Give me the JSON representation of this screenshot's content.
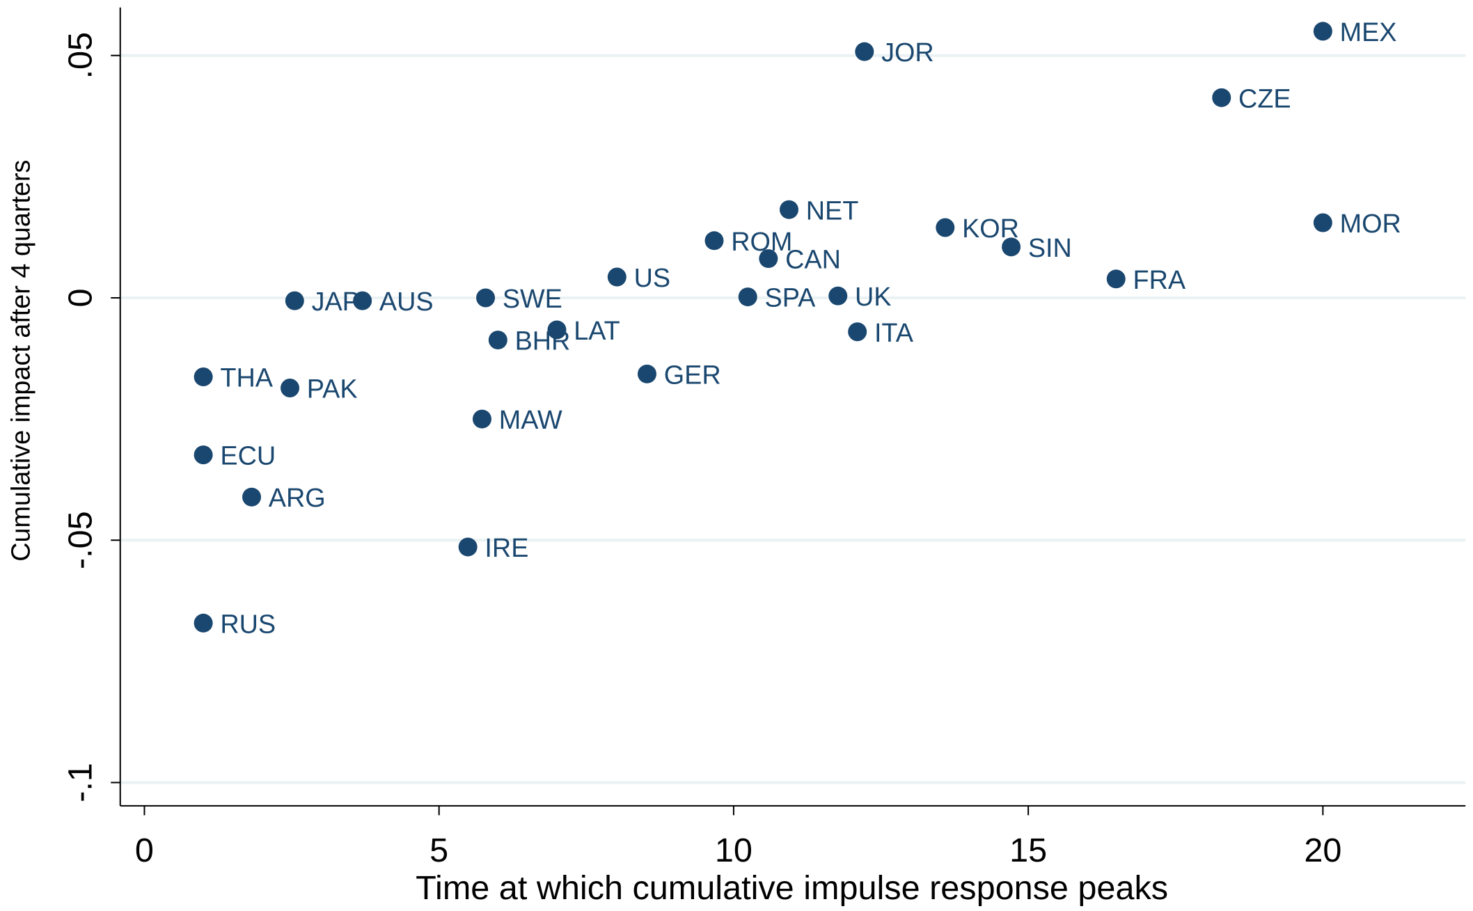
{
  "chart_data": {
    "type": "scatter",
    "x_label": "Time at which cumulative impulse response peaks",
    "y_label": "Cumulative impact after 4 quarters",
    "labels": [
      "MEX",
      "JOR",
      "CZE",
      "NET",
      "MOR",
      "KOR",
      "ROM",
      "SIN",
      "CAN",
      "US",
      "FRA",
      "UK",
      "SPA",
      "SWE",
      "JAP",
      "AUS",
      "LAT",
      "ITA",
      "BHR",
      "GER",
      "THA",
      "PAK",
      "MAW",
      "ECU",
      "ARG",
      "IRE",
      "RUS"
    ],
    "x": [
      20,
      12.22,
      18.28,
      10.94,
      20,
      13.59,
      9.67,
      14.71,
      10.59,
      8.02,
      16.49,
      11.77,
      10.24,
      5.79,
      2.55,
      3.7,
      7.0,
      12.1,
      6.0,
      8.53,
      1.0,
      2.47,
      5.73,
      1.0,
      1.82,
      5.49,
      1.0
    ],
    "values": [
      0.055,
      0.0508,
      0.0413,
      0.0182,
      0.0155,
      0.0145,
      0.0118,
      0.0105,
      0.0081,
      0.0043,
      0.0039,
      0.0004,
      0.0002,
      0.0,
      -0.0006,
      -0.0006,
      -0.0066,
      -0.007,
      -0.0087,
      -0.0157,
      -0.0163,
      -0.0186,
      -0.025,
      -0.0324,
      -0.0411,
      -0.0514,
      -0.0671
    ],
    "color": "#1a476f",
    "xlim": [
      -0.41,
      22.42
    ],
    "ylim": [
      -0.1048,
      0.0599
    ],
    "xticks": [
      0,
      5,
      10,
      15,
      20
    ],
    "yticks": [
      {
        "value": -0.1,
        "label": "-.1"
      },
      {
        "value": -0.05,
        "label": "-.05"
      },
      0,
      {
        "value": 0.05,
        "label": ".05"
      }
    ],
    "grid": true
  }
}
